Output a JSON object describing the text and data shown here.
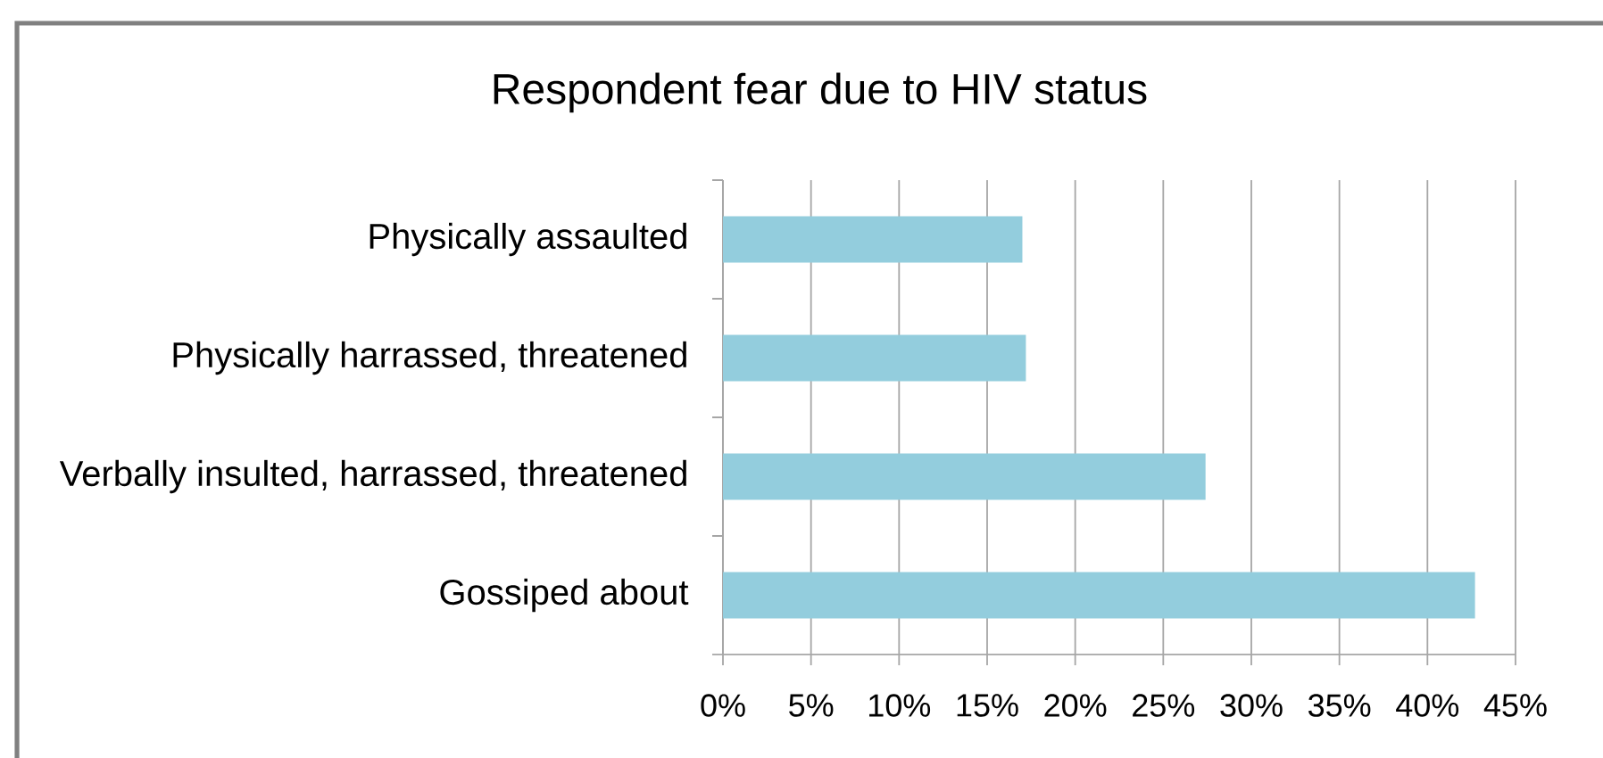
{
  "chart_data": {
    "type": "bar",
    "orientation": "horizontal",
    "title": "Respondent fear due to HIV status",
    "categories": [
      "Physically assaulted",
      "Physically harrassed, threatened",
      "Verbally insulted, harrassed, threatened",
      "Gossiped about"
    ],
    "values": [
      17.0,
      17.2,
      27.4,
      42.7
    ],
    "color": "#93cddd",
    "xlim": [
      0,
      45
    ],
    "xticks": [
      {
        "value": 0,
        "label": "0%"
      },
      {
        "value": 5,
        "label": "5%"
      },
      {
        "value": 10,
        "label": "10%"
      },
      {
        "value": 15,
        "label": "15%"
      },
      {
        "value": 20,
        "label": "20%"
      },
      {
        "value": 25,
        "label": "25%"
      },
      {
        "value": 30,
        "label": "30%"
      },
      {
        "value": 35,
        "label": "35%"
      },
      {
        "value": 40,
        "label": "40%"
      },
      {
        "value": 45,
        "label": "45%"
      }
    ],
    "grid": "x"
  }
}
